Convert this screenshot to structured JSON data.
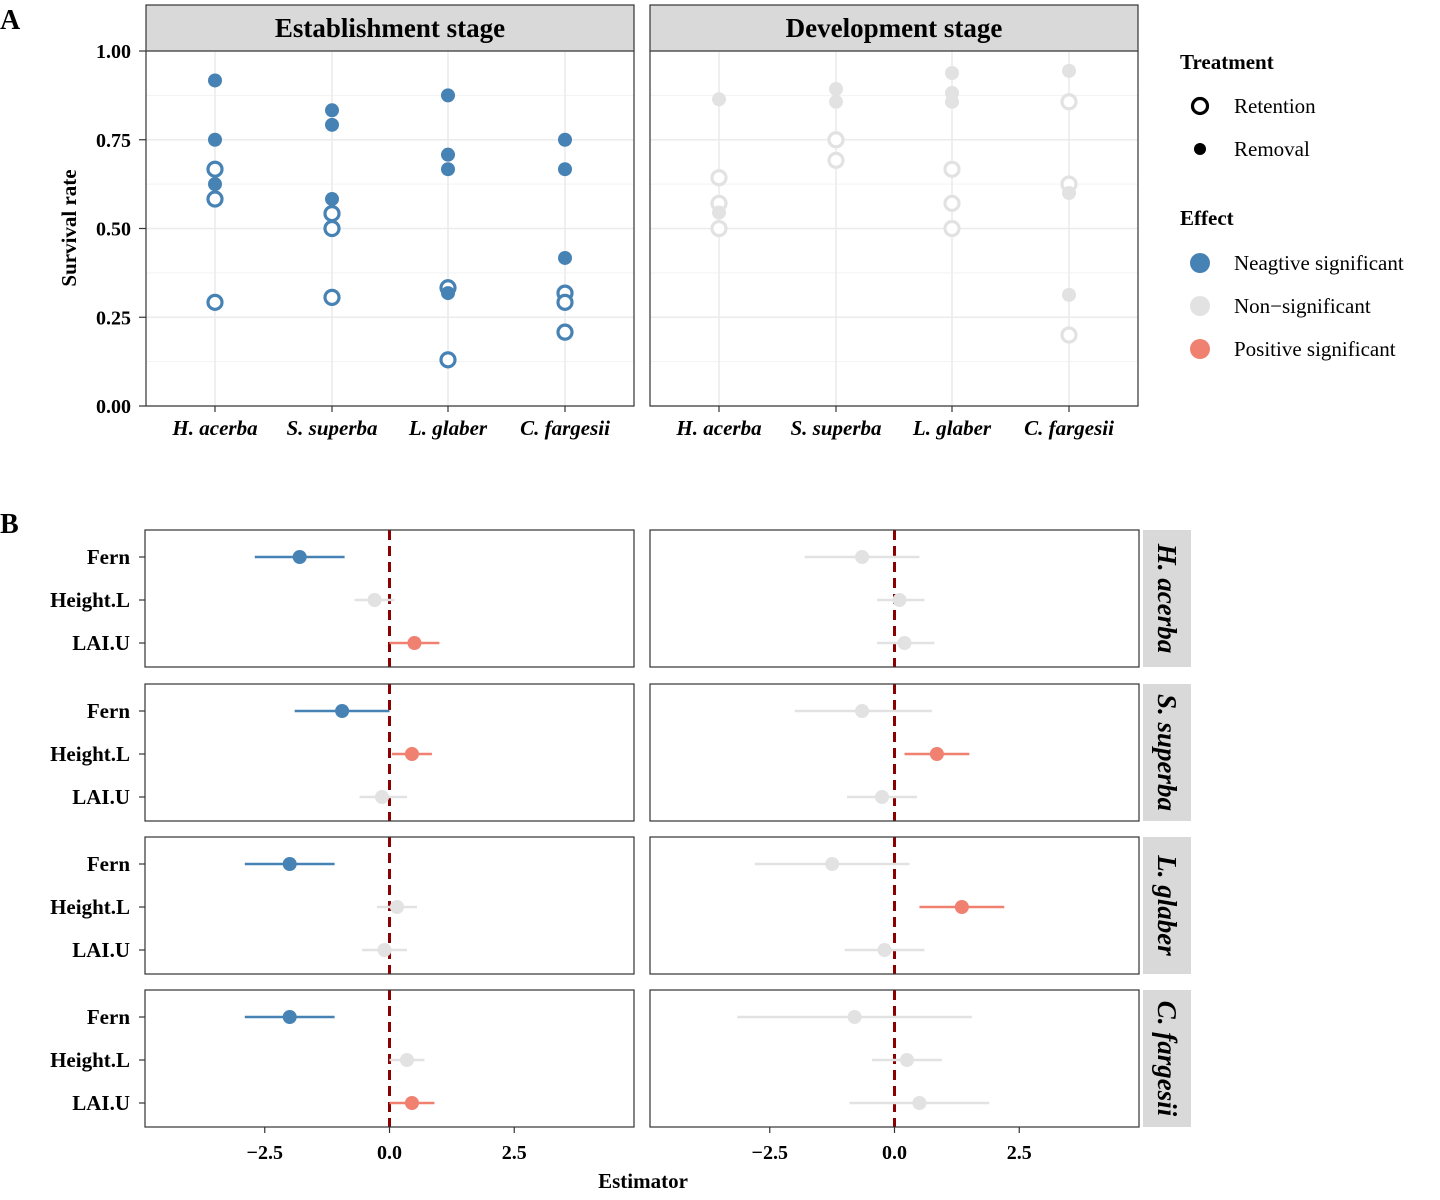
{
  "panel_labels": [
    "A",
    "B"
  ],
  "colors": {
    "negative": "#4682B4",
    "nonsig": "#E2E2E2",
    "positive": "#F08070",
    "zero_line": "#8B0000",
    "strip_bg": "#D9D9D9",
    "grid": "#EBEBEB"
  },
  "chart_data": [
    {
      "type": "scatter",
      "panel": "A",
      "ylabel": "Survival rate",
      "ylim": [
        0,
        1
      ],
      "yticks": [
        "0.00",
        "0.25",
        "0.50",
        "0.75",
        "1.00"
      ],
      "categories": [
        "H. acerba",
        "S. superba",
        "L. glaber",
        "C. fargesii"
      ],
      "facets": [
        {
          "title": "Establishment stage",
          "points": [
            {
              "species": 0,
              "value": 0.917,
              "treatment": "Removal",
              "effect": "negative"
            },
            {
              "species": 0,
              "value": 0.75,
              "treatment": "Removal",
              "effect": "negative"
            },
            {
              "species": 0,
              "value": 0.625,
              "treatment": "Removal",
              "effect": "negative"
            },
            {
              "species": 0,
              "value": 0.667,
              "treatment": "Retention",
              "effect": "negative"
            },
            {
              "species": 0,
              "value": 0.583,
              "treatment": "Retention",
              "effect": "negative"
            },
            {
              "species": 0,
              "value": 0.292,
              "treatment": "Retention",
              "effect": "negative"
            },
            {
              "species": 1,
              "value": 0.833,
              "treatment": "Removal",
              "effect": "negative"
            },
            {
              "species": 1,
              "value": 0.792,
              "treatment": "Removal",
              "effect": "negative"
            },
            {
              "species": 1,
              "value": 0.583,
              "treatment": "Removal",
              "effect": "negative"
            },
            {
              "species": 1,
              "value": 0.542,
              "treatment": "Retention",
              "effect": "negative"
            },
            {
              "species": 1,
              "value": 0.5,
              "treatment": "Retention",
              "effect": "negative"
            },
            {
              "species": 1,
              "value": 0.306,
              "treatment": "Retention",
              "effect": "negative"
            },
            {
              "species": 2,
              "value": 0.875,
              "treatment": "Removal",
              "effect": "negative"
            },
            {
              "species": 2,
              "value": 0.708,
              "treatment": "Removal",
              "effect": "negative"
            },
            {
              "species": 2,
              "value": 0.667,
              "treatment": "Removal",
              "effect": "negative"
            },
            {
              "species": 2,
              "value": 0.333,
              "treatment": "Retention",
              "effect": "negative"
            },
            {
              "species": 2,
              "value": 0.318,
              "treatment": "Removal",
              "effect": "negative"
            },
            {
              "species": 2,
              "value": 0.13,
              "treatment": "Retention",
              "effect": "negative"
            },
            {
              "species": 3,
              "value": 0.75,
              "treatment": "Removal",
              "effect": "negative"
            },
            {
              "species": 3,
              "value": 0.667,
              "treatment": "Removal",
              "effect": "negative"
            },
            {
              "species": 3,
              "value": 0.417,
              "treatment": "Removal",
              "effect": "negative"
            },
            {
              "species": 3,
              "value": 0.318,
              "treatment": "Retention",
              "effect": "negative"
            },
            {
              "species": 3,
              "value": 0.292,
              "treatment": "Retention",
              "effect": "negative"
            },
            {
              "species": 3,
              "value": 0.208,
              "treatment": "Retention",
              "effect": "negative"
            }
          ]
        },
        {
          "title": "Development stage",
          "points": [
            {
              "species": 0,
              "value": 0.864,
              "treatment": "Removal",
              "effect": "nonsig"
            },
            {
              "species": 0,
              "value": 0.643,
              "treatment": "Retention",
              "effect": "nonsig"
            },
            {
              "species": 0,
              "value": 0.571,
              "treatment": "Retention",
              "effect": "nonsig"
            },
            {
              "species": 0,
              "value": 0.545,
              "treatment": "Removal",
              "effect": "nonsig"
            },
            {
              "species": 0,
              "value": 0.5,
              "treatment": "Retention",
              "effect": "nonsig"
            },
            {
              "species": 1,
              "value": 0.893,
              "treatment": "Removal",
              "effect": "nonsig"
            },
            {
              "species": 1,
              "value": 0.857,
              "treatment": "Removal",
              "effect": "nonsig"
            },
            {
              "species": 1,
              "value": 0.75,
              "treatment": "Retention",
              "effect": "nonsig"
            },
            {
              "species": 1,
              "value": 0.692,
              "treatment": "Retention",
              "effect": "nonsig"
            },
            {
              "species": 2,
              "value": 0.938,
              "treatment": "Removal",
              "effect": "nonsig"
            },
            {
              "species": 2,
              "value": 0.882,
              "treatment": "Removal",
              "effect": "nonsig"
            },
            {
              "species": 2,
              "value": 0.857,
              "treatment": "Removal",
              "effect": "nonsig"
            },
            {
              "species": 2,
              "value": 0.667,
              "treatment": "Retention",
              "effect": "nonsig"
            },
            {
              "species": 2,
              "value": 0.571,
              "treatment": "Retention",
              "effect": "nonsig"
            },
            {
              "species": 2,
              "value": 0.5,
              "treatment": "Retention",
              "effect": "nonsig"
            },
            {
              "species": 3,
              "value": 0.944,
              "treatment": "Removal",
              "effect": "nonsig"
            },
            {
              "species": 3,
              "value": 0.857,
              "treatment": "Retention",
              "effect": "nonsig"
            },
            {
              "species": 3,
              "value": 0.625,
              "treatment": "Retention",
              "effect": "nonsig"
            },
            {
              "species": 3,
              "value": 0.6,
              "treatment": "Removal",
              "effect": "nonsig"
            },
            {
              "species": 3,
              "value": 0.313,
              "treatment": "Removal",
              "effect": "nonsig"
            },
            {
              "species": 3,
              "value": 0.2,
              "treatment": "Retention",
              "effect": "nonsig"
            }
          ]
        }
      ],
      "legend": {
        "treatment_title": "Treatment",
        "treatment_items": [
          "Retention",
          "Removal"
        ],
        "effect_title": "Effect",
        "effect_items": [
          {
            "label": "Neagtive significant",
            "effect": "negative"
          },
          {
            "label": "Non−significant",
            "effect": "nonsig"
          },
          {
            "label": "Positive significant",
            "effect": "positive"
          }
        ],
        "position": "right"
      }
    },
    {
      "type": "forest",
      "panel": "B",
      "xlabel": "Estimator",
      "xlim": [
        -4.9,
        4.9
      ],
      "xticks": [
        -2.5,
        0,
        2.5
      ],
      "xtick_labels": [
        "−2.5",
        "0.0",
        "2.5"
      ],
      "variables": [
        "Fern",
        "Height.L",
        "LAI.U"
      ],
      "rows": [
        {
          "species": "H. acerba",
          "establishment": [
            {
              "variable": "Fern",
              "estimate": -1.8,
              "lo": -2.7,
              "hi": -0.9,
              "effect": "negative"
            },
            {
              "variable": "Height.L",
              "estimate": -0.3,
              "lo": -0.7,
              "hi": 0.1,
              "effect": "nonsig"
            },
            {
              "variable": "LAI.U",
              "estimate": 0.5,
              "lo": 0.0,
              "hi": 1.0,
              "effect": "positive"
            }
          ],
          "development": [
            {
              "variable": "Fern",
              "estimate": -0.65,
              "lo": -1.8,
              "hi": 0.5,
              "effect": "nonsig"
            },
            {
              "variable": "Height.L",
              "estimate": 0.1,
              "lo": -0.35,
              "hi": 0.6,
              "effect": "nonsig"
            },
            {
              "variable": "LAI.U",
              "estimate": 0.2,
              "lo": -0.35,
              "hi": 0.8,
              "effect": "nonsig"
            }
          ]
        },
        {
          "species": "S. superba",
          "establishment": [
            {
              "variable": "Fern",
              "estimate": -0.95,
              "lo": -1.9,
              "hi": 0.0,
              "effect": "negative"
            },
            {
              "variable": "Height.L",
              "estimate": 0.45,
              "lo": 0.05,
              "hi": 0.85,
              "effect": "positive"
            },
            {
              "variable": "LAI.U",
              "estimate": -0.15,
              "lo": -0.6,
              "hi": 0.35,
              "effect": "nonsig"
            }
          ],
          "development": [
            {
              "variable": "Fern",
              "estimate": -0.65,
              "lo": -2.0,
              "hi": 0.75,
              "effect": "nonsig"
            },
            {
              "variable": "Height.L",
              "estimate": 0.85,
              "lo": 0.2,
              "hi": 1.5,
              "effect": "positive"
            },
            {
              "variable": "LAI.U",
              "estimate": -0.25,
              "lo": -0.95,
              "hi": 0.45,
              "effect": "nonsig"
            }
          ]
        },
        {
          "species": "L. glaber",
          "establishment": [
            {
              "variable": "Fern",
              "estimate": -2.0,
              "lo": -2.9,
              "hi": -1.1,
              "effect": "negative"
            },
            {
              "variable": "Height.L",
              "estimate": 0.15,
              "lo": -0.25,
              "hi": 0.55,
              "effect": "nonsig"
            },
            {
              "variable": "LAI.U",
              "estimate": -0.1,
              "lo": -0.55,
              "hi": 0.35,
              "effect": "nonsig"
            }
          ],
          "development": [
            {
              "variable": "Fern",
              "estimate": -1.25,
              "lo": -2.8,
              "hi": 0.3,
              "effect": "nonsig"
            },
            {
              "variable": "Height.L",
              "estimate": 1.35,
              "lo": 0.5,
              "hi": 2.2,
              "effect": "positive"
            },
            {
              "variable": "LAI.U",
              "estimate": -0.2,
              "lo": -1.0,
              "hi": 0.6,
              "effect": "nonsig"
            }
          ]
        },
        {
          "species": "C. fargesii",
          "establishment": [
            {
              "variable": "Fern",
              "estimate": -2.0,
              "lo": -2.9,
              "hi": -1.1,
              "effect": "negative"
            },
            {
              "variable": "Height.L",
              "estimate": 0.35,
              "lo": 0.0,
              "hi": 0.7,
              "effect": "nonsig"
            },
            {
              "variable": "LAI.U",
              "estimate": 0.45,
              "lo": 0.0,
              "hi": 0.9,
              "effect": "positive"
            }
          ],
          "development": [
            {
              "variable": "Fern",
              "estimate": -0.8,
              "lo": -3.15,
              "hi": 1.55,
              "effect": "nonsig"
            },
            {
              "variable": "Height.L",
              "estimate": 0.25,
              "lo": -0.45,
              "hi": 0.95,
              "effect": "nonsig"
            },
            {
              "variable": "LAI.U",
              "estimate": 0.5,
              "lo": -0.9,
              "hi": 1.9,
              "effect": "nonsig"
            }
          ]
        }
      ]
    }
  ]
}
